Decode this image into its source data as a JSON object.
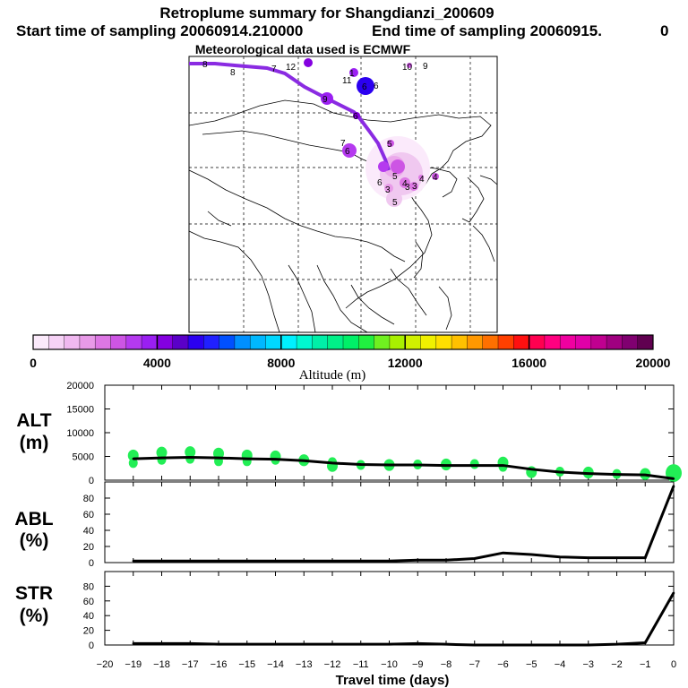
{
  "header": {
    "title": "Retroplume summary for Shangdianzi_200609",
    "sampling_start_label": "Start time of sampling 20060914.210000",
    "sampling_end_label": "End time of sampling 20060915.",
    "sampling_end_trailing": "0",
    "met_data_label": "Meteorological data used is ECMWF"
  },
  "colors": {
    "trajectory": "#8a2be2",
    "plume_light": "#f0c8f0",
    "scatter_green": "#22ee55",
    "line": "#000000"
  },
  "colorbar": {
    "axis_label": "Altitude (m)",
    "tick_labels": [
      "0",
      "4000",
      "8000",
      "12000",
      "16000",
      "20000"
    ],
    "min": 0,
    "max": 20000,
    "colors": [
      "#fbeafb",
      "#f6d2f6",
      "#f0b8f0",
      "#e89ae8",
      "#dd77e4",
      "#cd55e4",
      "#b53aef",
      "#9a1ff2",
      "#8400e0",
      "#5a00c8",
      "#2b00f0",
      "#2020ff",
      "#0050ff",
      "#0090ff",
      "#00b8ff",
      "#00d8ff",
      "#00f0ff",
      "#00f8d0",
      "#00f0a8",
      "#00f088",
      "#00f068",
      "#20f040",
      "#70f020",
      "#a8f000",
      "#d0f000",
      "#f0f000",
      "#ffdf00",
      "#ffc000",
      "#ff9800",
      "#ff7000",
      "#ff4000",
      "#ff1010",
      "#ff0050",
      "#ff0080",
      "#f000a0",
      "#e000a8",
      "#c00090",
      "#a00080",
      "#800070",
      "#600050"
    ]
  },
  "map": {
    "day_labels": [
      "8",
      "8",
      "7",
      "12",
      "1",
      "11",
      "6",
      "6",
      "7",
      "6",
      "6",
      "9",
      "10",
      "9",
      "5",
      "4",
      "6",
      "4",
      "3",
      "5",
      "3",
      "3",
      "4",
      "5"
    ]
  },
  "chart_data": [
    {
      "type": "line",
      "id": "ALT",
      "title": "ALT",
      "ylabel": "(m)",
      "ylim": [
        0,
        20000
      ],
      "yticks": [
        0,
        5000,
        10000,
        15000,
        20000
      ],
      "ytick_labels": [
        "0",
        "5000",
        "10000",
        "15000",
        "20000"
      ],
      "x": [
        -19,
        -18,
        -17,
        -16,
        -15,
        -14,
        -13,
        -12,
        -11,
        -10,
        -9,
        -8,
        -7,
        -6,
        -5,
        -4,
        -3,
        -2,
        -1,
        0
      ],
      "values": [
        4500,
        4700,
        4800,
        4700,
        4500,
        4400,
        4100,
        3600,
        3300,
        3200,
        3200,
        3100,
        3100,
        3100,
        2300,
        1700,
        1400,
        1200,
        1100,
        300
      ],
      "scatter": {
        "x": [
          -19,
          -19,
          -18,
          -18,
          -17,
          -17,
          -16,
          -16,
          -15,
          -15,
          -14,
          -14,
          -13,
          -12,
          -12,
          -11,
          -10,
          -9,
          -8,
          -7,
          -6,
          -6,
          -5,
          -4,
          -3,
          -2,
          -1,
          0
        ],
        "y": [
          5200,
          3600,
          5800,
          4300,
          5900,
          4500,
          5600,
          4000,
          5200,
          4000,
          5000,
          4300,
          4200,
          3800,
          3000,
          3200,
          3200,
          3300,
          3300,
          3400,
          3700,
          2800,
          1700,
          1800,
          1600,
          1300,
          1300,
          1500
        ]
      }
    },
    {
      "type": "line",
      "id": "ABL",
      "title": "ABL",
      "ylabel": "(%)",
      "ylim": [
        0,
        100
      ],
      "yticks": [
        0,
        20,
        40,
        60,
        80
      ],
      "ytick_labels": [
        "0",
        "20",
        "40",
        "60",
        "80"
      ],
      "x": [
        -19,
        -18,
        -17,
        -16,
        -15,
        -14,
        -13,
        -12,
        -11,
        -10,
        -9,
        -8,
        -7,
        -6,
        -5,
        -4,
        -3,
        -2,
        -1,
        0
      ],
      "values": [
        2,
        2,
        2,
        2,
        2,
        2,
        2,
        2,
        2,
        2,
        3,
        3,
        5,
        12,
        10,
        7,
        6,
        6,
        6,
        95
      ]
    },
    {
      "type": "line",
      "id": "STR",
      "title": "STR",
      "ylabel": "(%)",
      "ylim": [
        0,
        100
      ],
      "yticks": [
        0,
        20,
        40,
        60,
        80
      ],
      "ytick_labels": [
        "0",
        "20",
        "40",
        "60",
        "80"
      ],
      "x": [
        -19,
        -18,
        -17,
        -16,
        -15,
        -14,
        -13,
        -12,
        -11,
        -10,
        -9,
        -8,
        -7,
        -6,
        -5,
        -4,
        -3,
        -2,
        -1,
        0
      ],
      "values": [
        2,
        2,
        2,
        1,
        1,
        1,
        1,
        1,
        1,
        1,
        2,
        1,
        0,
        0,
        0,
        0,
        0,
        1,
        3,
        71
      ]
    }
  ],
  "xaxis": {
    "label": "Travel time (days)",
    "min": -20,
    "max": 0,
    "ticks": [
      -20,
      -19,
      -18,
      -17,
      -16,
      -15,
      -14,
      -13,
      -12,
      -11,
      -10,
      -9,
      -8,
      -7,
      -6,
      -5,
      -4,
      -3,
      -2,
      -1,
      0
    ],
    "tick_labels": [
      "−20",
      "−19",
      "−18",
      "−17",
      "−16",
      "−15",
      "−14",
      "−13",
      "−12",
      "−11",
      "−10",
      "−9",
      "−8",
      "−7",
      "−6",
      "−5",
      "−4",
      "−3",
      "−2",
      "−1",
      "0"
    ]
  }
}
